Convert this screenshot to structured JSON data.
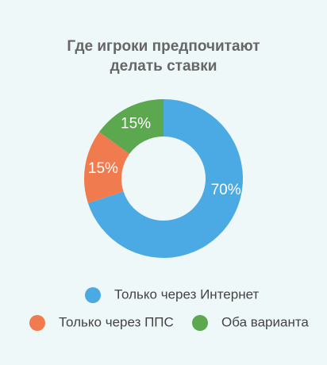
{
  "chart_data": {
    "type": "donut",
    "title": "Где игроки предпочитают делать ставки",
    "categories": [
      "Только через Интернет",
      "Только через ППС",
      "Оба варианта"
    ],
    "values": [
      70,
      15,
      15
    ],
    "value_labels": [
      "70%",
      "15%",
      "15%"
    ],
    "colors": [
      "#4ba9e4",
      "#ef7b4f",
      "#5ba84f"
    ]
  }
}
